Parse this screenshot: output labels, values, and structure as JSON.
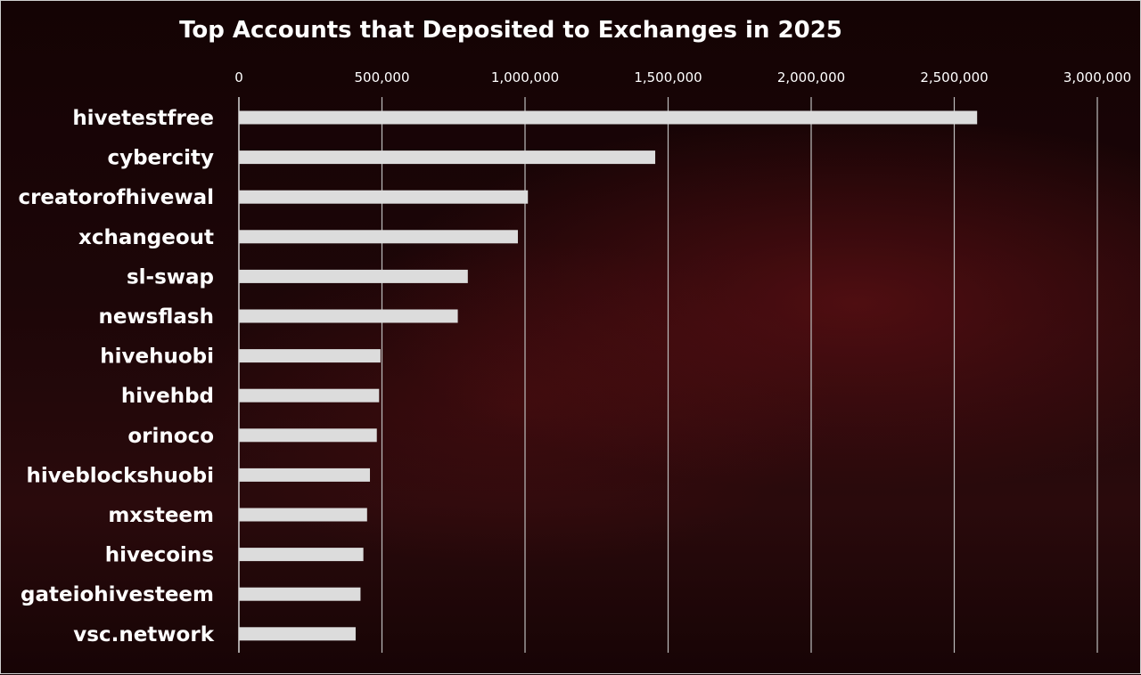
{
  "chart_data": {
    "type": "bar",
    "orientation": "horizontal",
    "title": "Top Accounts that Deposited to Exchanges in 2025",
    "xlabel": "",
    "ylabel": "",
    "xlim": [
      0,
      3000000
    ],
    "x_ticks": [
      0,
      500000,
      1000000,
      1500000,
      2000000,
      2500000,
      3000000
    ],
    "x_tick_labels": [
      "0",
      "500,000",
      "1,000,000",
      "1,500,000",
      "2,000,000",
      "2,500,000",
      "3,000,000"
    ],
    "x_axis_position": "top",
    "grid": true,
    "categories": [
      "hivetestfree",
      "cybercity",
      "creatorofhivewal",
      "xchangeout",
      "sl-swap",
      "newsflash",
      "hivehuobi",
      "hivehbd",
      "orinoco",
      "hiveblockshuobi",
      "mxsteem",
      "hivecoins",
      "gateiohivesteem",
      "vsc.network"
    ],
    "values": [
      2580000,
      1455000,
      1010000,
      975000,
      800000,
      765000,
      495000,
      490000,
      482000,
      458000,
      448000,
      435000,
      425000,
      408000
    ],
    "colors": {
      "bar": "#dcdcdc",
      "text": "#ffffff",
      "grid": "#bdbdbd"
    }
  }
}
